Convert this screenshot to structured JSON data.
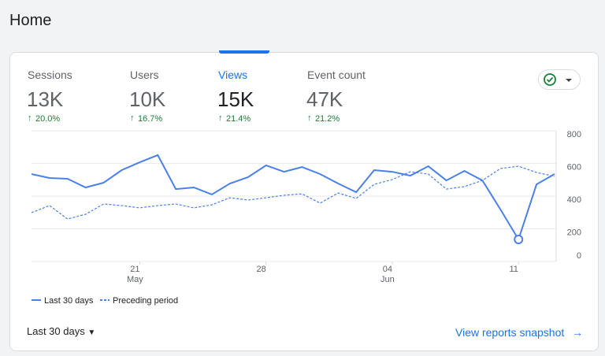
{
  "header": {
    "title": "Home"
  },
  "metrics": [
    {
      "label": "Sessions",
      "value": "13K",
      "change": "20.0%"
    },
    {
      "label": "Users",
      "value": "10K",
      "change": "16.7%"
    },
    {
      "label": "Views",
      "value": "15K",
      "change": "21.4%"
    },
    {
      "label": "Event count",
      "value": "47K",
      "change": "21.2%"
    }
  ],
  "chart_data": {
    "type": "line",
    "categories": [
      null,
      null,
      null,
      null,
      null,
      null,
      "21",
      null,
      null,
      null,
      null,
      null,
      null,
      "28",
      null,
      null,
      null,
      null,
      null,
      null,
      "04",
      null,
      null,
      null,
      null,
      null,
      null,
      "11",
      null,
      null
    ],
    "months": [
      null,
      null,
      null,
      null,
      null,
      null,
      "May",
      null,
      null,
      null,
      null,
      null,
      null,
      null,
      null,
      null,
      null,
      null,
      null,
      null,
      "Jun",
      null,
      null,
      null,
      null,
      null,
      null,
      null,
      null,
      null
    ],
    "series": [
      {
        "name": "Last 30 days",
        "color": "#4a80e8",
        "dash": false,
        "values": [
          535,
          511,
          506,
          453,
          482,
          559,
          607,
          651,
          443,
          453,
          410,
          477,
          516,
          588,
          549,
          578,
          535,
          477,
          424,
          559,
          549,
          525,
          583,
          496,
          554,
          496,
          318,
          135,
          472,
          535
        ]
      },
      {
        "name": "Preceding period",
        "color": "#4a80e8",
        "dash": true,
        "values": [
          299,
          342,
          260,
          289,
          352,
          342,
          328,
          342,
          352,
          328,
          347,
          390,
          376,
          390,
          405,
          414,
          357,
          419,
          386,
          472,
          501,
          549,
          535,
          443,
          458,
          496,
          569,
          583,
          545,
          520
        ]
      }
    ],
    "ylim": [
      0,
      800
    ],
    "yticks": [
      0,
      200,
      400,
      600,
      800
    ],
    "grid": true
  },
  "footer": {
    "range": "Last 30 days",
    "link": "View reports snapshot"
  }
}
